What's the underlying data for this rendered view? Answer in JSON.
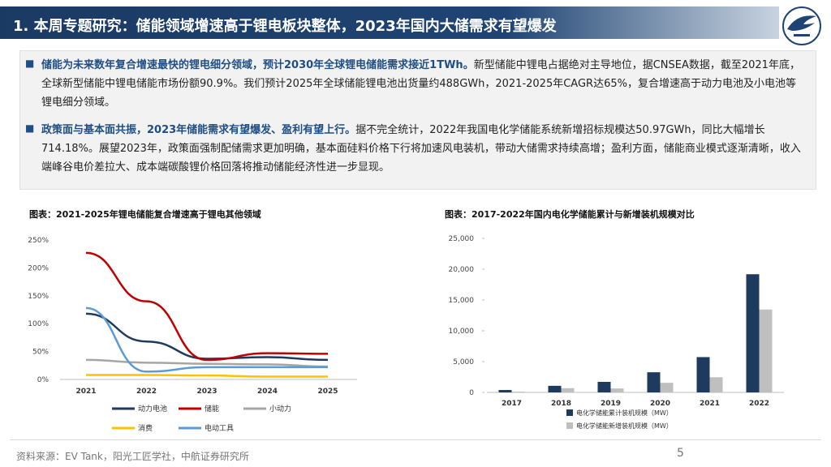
{
  "header": {
    "title": "1. 本周专题研究：储能领域增速高于锂电板块整体，2023年国内大储需求有望爆发"
  },
  "summary": {
    "p1_highlight": "储能为未来数年复合增速最快的锂电细分领域，预计2030年全球锂电储能需求接近1TWh。",
    "p1_rest": "新型储能中锂电占据绝对主导地位，据CNSEA数据，截至2021年底，全球新型储能中锂电储能市场份额90.9%。我们预计2025年全球储能锂电池出货量约488GWh，2021-2025年CAGR达65%，复合增速高于动力电池及小电池等锂电细分领域。",
    "p2_highlight": "政策面与基本面共振，2023年储能需求有望爆发、盈利有望上行。",
    "p2_rest": "据不完全统计，2022年我国电化学储能系统新增招标规模达50.97GWh，同比大幅增长714.18%。展望2023年，政策面强制配储需求更加明确，基本面硅料价格下行将加速风电装机，带动大储需求持续高增；盈利方面，储能商业模式逐渐清晰，收入端峰谷电价差拉大、成本端碳酸锂价格回落将推动储能经济性进一步显现。"
  },
  "chart_left_title": "图表：2021-2025年锂电储能复合增速高于锂电其他领域",
  "chart_right_title": "图表：2017-2022年国内电化学储能累计与新增装机规模对比",
  "footer": {
    "source": "资料来源：EV Tank，阳光工匠学社，中航证券研究所",
    "page": "5"
  },
  "chart_data": [
    {
      "type": "line",
      "x": [
        "2021",
        "2022",
        "2023",
        "2024",
        "2025"
      ],
      "ylim": [
        0,
        250
      ],
      "yticks": [
        "0%",
        "50%",
        "100%",
        "150%",
        "200%",
        "250%"
      ],
      "series": [
        {
          "name": "动力电池",
          "color": "#1f3a5f",
          "values": [
            118,
            68,
            37,
            40,
            35
          ]
        },
        {
          "name": "储能",
          "color": "#c00000",
          "values": [
            227,
            140,
            35,
            47,
            46
          ]
        },
        {
          "name": "小动力",
          "color": "#a6a6a6",
          "values": [
            35,
            30,
            28,
            27,
            23
          ]
        },
        {
          "name": "消费",
          "color": "#ffc000",
          "values": [
            8,
            8,
            7,
            5,
            5
          ]
        },
        {
          "name": "电动工具",
          "color": "#5b9bd5",
          "values": [
            128,
            14,
            22,
            22,
            22
          ]
        }
      ]
    },
    {
      "type": "bar",
      "categories": [
        "2017",
        "2018",
        "2019",
        "2020",
        "2021",
        "2022"
      ],
      "ylim": [
        0,
        25000
      ],
      "yticks": [
        "0",
        "5,000",
        "10,000",
        "15,000",
        "20,000",
        "25,000"
      ],
      "series": [
        {
          "name": "电化学储能累计装机规模（MW）",
          "color": "#1f3a5f",
          "values": [
            390,
            1070,
            1710,
            3270,
            5730,
            19180
          ]
        },
        {
          "name": "电化学储能新增装机规模（MW）",
          "color": "#bfbfbf",
          "values": [
            120,
            680,
            640,
            1560,
            2460,
            13450
          ]
        }
      ]
    }
  ]
}
